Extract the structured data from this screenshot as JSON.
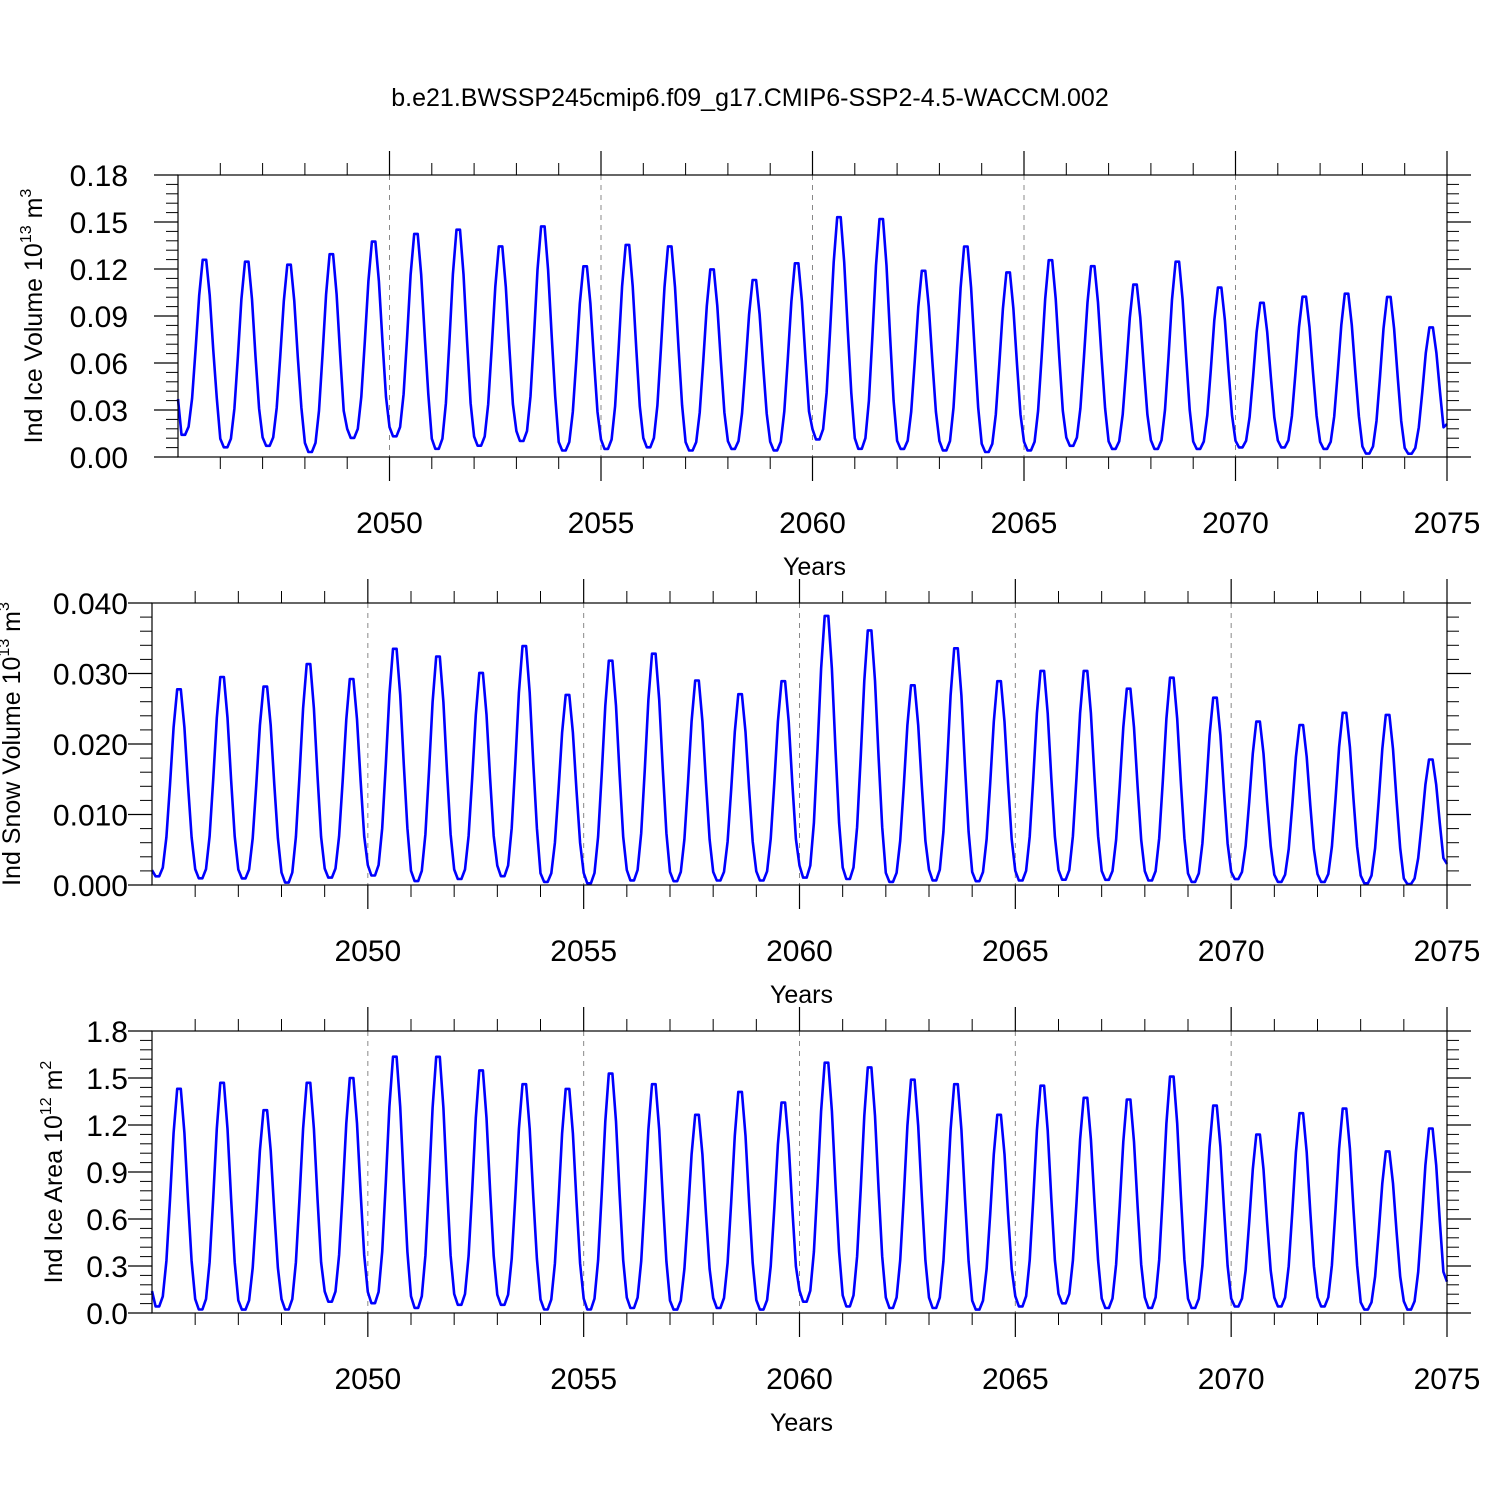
{
  "title": "b.e21.BWSSP245cmip6.f09_g17.CMIP6-SSP2-4.5-WACCM.002",
  "series_color": "#0000ff",
  "chart_data": [
    {
      "type": "line",
      "ylabel": "Ind Ice Volume 10",
      "ylabel_exp": "13",
      "ylabel_unit": " m",
      "ylabel_unit_exp": "3",
      "xlabel": "Years",
      "xlim": [
        2045,
        2075
      ],
      "ylim": [
        0,
        0.18
      ],
      "yticks": [
        "0.00",
        "0.03",
        "0.06",
        "0.09",
        "0.12",
        "0.15",
        "0.18"
      ],
      "ytick_values": [
        0,
        0.03,
        0.06,
        0.09,
        0.12,
        0.15,
        0.18
      ],
      "xticks": [
        "2050",
        "2055",
        "2060",
        "2065",
        "2070",
        "2075"
      ],
      "xtick_values": [
        2050,
        2055,
        2060,
        2065,
        2070,
        2075
      ],
      "grid": "vertical dashed at major x ticks",
      "start_year": 2045,
      "months_per_year": 12,
      "peaks": [
        0.129,
        0.128,
        0.126,
        0.133,
        0.141,
        0.146,
        0.149,
        0.138,
        0.151,
        0.125,
        0.139,
        0.138,
        0.123,
        0.116,
        0.127,
        0.157,
        0.156,
        0.122,
        0.138,
        0.121,
        0.129,
        0.125,
        0.113,
        0.128,
        0.111,
        0.101,
        0.105,
        0.107,
        0.105,
        0.085
      ],
      "troughs": [
        0.014,
        0.006,
        0.007,
        0.003,
        0.012,
        0.013,
        0.005,
        0.007,
        0.01,
        0.004,
        0.005,
        0.006,
        0.004,
        0.005,
        0.004,
        0.011,
        0.005,
        0.005,
        0.004,
        0.003,
        0.004,
        0.007,
        0.005,
        0.005,
        0.005,
        0.006,
        0.006,
        0.005,
        0.002,
        0.002
      ],
      "start_value": 0.037,
      "end_value": 0.021
    },
    {
      "type": "line",
      "ylabel": "Ind Snow Volume 10",
      "ylabel_exp": "13",
      "ylabel_unit": " m",
      "ylabel_unit_exp": "3",
      "xlabel": "Years",
      "xlim": [
        2045,
        2075
      ],
      "ylim": [
        0,
        0.04
      ],
      "yticks": [
        "0.000",
        "0.010",
        "0.020",
        "0.030",
        "0.040"
      ],
      "ytick_values": [
        0,
        0.01,
        0.02,
        0.03,
        0.04
      ],
      "xticks": [
        "2050",
        "2055",
        "2060",
        "2065",
        "2070",
        "2075"
      ],
      "xtick_values": [
        2050,
        2055,
        2060,
        2065,
        2070,
        2075
      ],
      "grid": "vertical dashed at major x ticks",
      "start_year": 2045,
      "months_per_year": 12,
      "peaks": [
        0.0285,
        0.0303,
        0.0289,
        0.0322,
        0.03,
        0.0344,
        0.0333,
        0.0309,
        0.0348,
        0.0277,
        0.0327,
        0.0337,
        0.0298,
        0.0278,
        0.0297,
        0.0392,
        0.0371,
        0.0291,
        0.0345,
        0.0297,
        0.0312,
        0.0312,
        0.0286,
        0.0302,
        0.0273,
        0.0238,
        0.0233,
        0.0251,
        0.0248,
        0.0183
      ],
      "troughs": [
        0.0012,
        0.0009,
        0.0009,
        0.0003,
        0.001,
        0.0013,
        0.0005,
        0.0008,
        0.0012,
        0.0004,
        0.0002,
        0.0006,
        0.0005,
        0.0006,
        0.0006,
        0.001,
        0.0008,
        0.0004,
        0.0006,
        0.0005,
        0.0006,
        0.0007,
        0.0007,
        0.0006,
        0.0004,
        0.0008,
        0.0004,
        0.0004,
        0.0002,
        0.0001
      ],
      "start_value": 0.0021,
      "end_value": 0.003
    },
    {
      "type": "line",
      "ylabel": "Ind Ice Area 10",
      "ylabel_exp": "12",
      "ylabel_unit": " m",
      "ylabel_unit_exp": "2",
      "xlabel": "Years",
      "xlim": [
        2045,
        2075
      ],
      "ylim": [
        0,
        1.8
      ],
      "yticks": [
        "0.0",
        "0.3",
        "0.6",
        "0.9",
        "1.2",
        "1.5",
        "1.8"
      ],
      "ytick_values": [
        0,
        0.3,
        0.6,
        0.9,
        1.2,
        1.5,
        1.8
      ],
      "xticks": [
        "2050",
        "2055",
        "2060",
        "2065",
        "2070",
        "2075"
      ],
      "xtick_values": [
        2050,
        2055,
        2060,
        2065,
        2070,
        2075
      ],
      "grid": "vertical dashed at major x ticks",
      "start_year": 2045,
      "months_per_year": 12,
      "peaks": [
        1.47,
        1.51,
        1.33,
        1.51,
        1.54,
        1.68,
        1.68,
        1.59,
        1.5,
        1.47,
        1.57,
        1.5,
        1.3,
        1.45,
        1.38,
        1.64,
        1.61,
        1.53,
        1.5,
        1.3,
        1.49,
        1.41,
        1.4,
        1.55,
        1.36,
        1.17,
        1.31,
        1.34,
        1.06,
        1.21
      ],
      "troughs": [
        0.04,
        0.02,
        0.02,
        0.02,
        0.07,
        0.06,
        0.03,
        0.05,
        0.05,
        0.02,
        0.02,
        0.03,
        0.02,
        0.03,
        0.02,
        0.07,
        0.04,
        0.03,
        0.03,
        0.02,
        0.04,
        0.06,
        0.03,
        0.03,
        0.03,
        0.04,
        0.04,
        0.04,
        0.02,
        0.02
      ],
      "start_value": 0.14,
      "end_value": 0.2
    }
  ]
}
